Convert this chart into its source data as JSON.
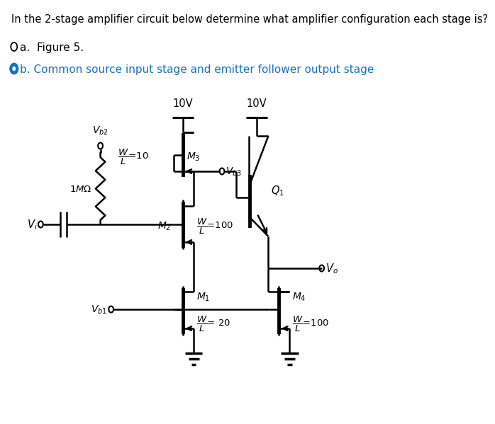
{
  "title_text": "In the 2-stage amplifier circuit below determine what amplifier configuration each stage is?",
  "option_a": "a.  Figure 5.",
  "option_b": "b. Common source input stage and emitter follower output stage",
  "bg_color": "#ffffff",
  "text_color": "#000000",
  "blue_color": "#1a6fc4",
  "title_fontsize": 10.5,
  "option_fontsize": 11
}
